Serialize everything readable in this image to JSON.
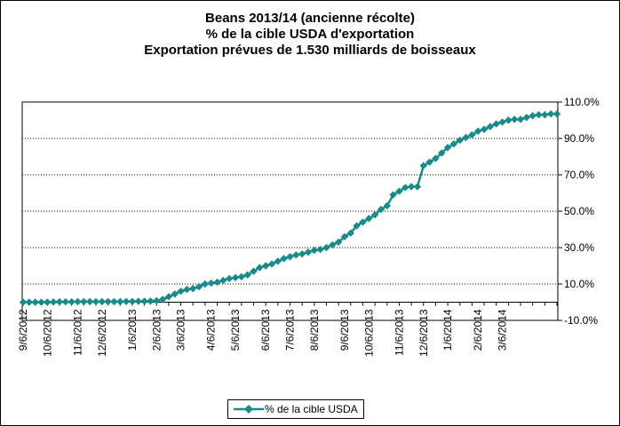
{
  "chart_data": {
    "type": "line",
    "title": [
      "Beans 2013/14 (ancienne récolte)",
      "% de la cible USDA d'exportation",
      "Exportation prévues de 1.530 milliards de boisseaux"
    ],
    "xlabel": "",
    "ylabel": "",
    "ylim": [
      -10,
      110
    ],
    "y_ticks": [
      -10,
      10,
      30,
      50,
      70,
      90,
      110
    ],
    "y_tick_labels": [
      "-10.0%",
      "10.0%",
      "30.0%",
      "50.0%",
      "70.0%",
      "90.0%",
      "110.0%"
    ],
    "y_axis_side": "right",
    "gridlines": "horizontal, dotted",
    "x_tick_labels": [
      "9/6/2012",
      "10/6/2012",
      "11/6/2012",
      "12/6/2012",
      "1/6/2013",
      "2/6/2013",
      "3/6/2013",
      "4/6/2013",
      "5/6/2013",
      "6/6/2013",
      "7/6/2013",
      "8/6/2013",
      "9/6/2013",
      "10/6/2013",
      "11/6/2013",
      "12/6/2013",
      "1/6/2014",
      "2/6/2014",
      "3/6/2014"
    ],
    "legend_position": "bottom-center",
    "series": [
      {
        "name": "% de la cible USDA",
        "color": "#1a8a8a",
        "marker": "diamond",
        "values": [
          0,
          0,
          0,
          0,
          0,
          0.1,
          0.2,
          0.2,
          0.2,
          0.3,
          0.3,
          0.3,
          0.3,
          0.3,
          0.3,
          0.3,
          0.3,
          0.4,
          0.4,
          0.5,
          0.5,
          0.6,
          0.8,
          1.5,
          3,
          4.5,
          6,
          7,
          7.5,
          8.5,
          10,
          10.5,
          11,
          12,
          13,
          13.5,
          14,
          15,
          17,
          19,
          20,
          21,
          22.5,
          24,
          25,
          26,
          26.5,
          27.5,
          28.5,
          29,
          30,
          31.5,
          33,
          36,
          38,
          42,
          44,
          46,
          48,
          51,
          53,
          59,
          61,
          63,
          63.5,
          63.5,
          75,
          77,
          79,
          82,
          85,
          87,
          89,
          90.5,
          92,
          94,
          95,
          96.5,
          98,
          99,
          100,
          100.5,
          100.5,
          101.5,
          102.5,
          103,
          103,
          103.5,
          103.5
        ]
      }
    ]
  }
}
